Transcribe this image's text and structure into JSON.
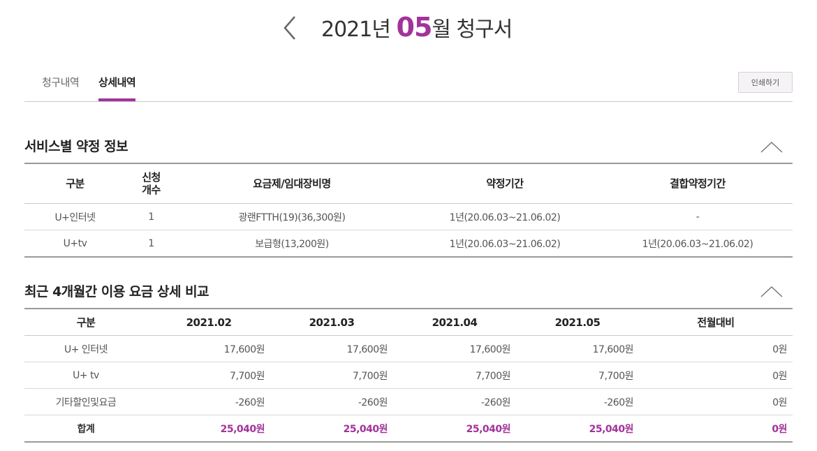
{
  "header": {
    "title_year": "2021년",
    "title_month": "05",
    "title_suffix": "월 청구서"
  },
  "tabs": [
    {
      "label": "청구내역",
      "active": false
    },
    {
      "label": "상세내역",
      "active": true
    }
  ],
  "print_label": "인쇄하기",
  "accent_color": "#a2339a",
  "section1": {
    "title": "서비스별 약정 정보",
    "headers": [
      "구분",
      "신청\n개수",
      "요금제/임대장비명",
      "약정기간",
      "결합약정기간"
    ],
    "rows": [
      [
        "U+인터넷",
        "1",
        "광랜FTTH(19)(36,300원)",
        "1년(20.06.03~21.06.02)",
        "-"
      ],
      [
        "U+tv",
        "1",
        "보급형(13,200원)",
        "1년(20.06.03~21.06.02)",
        "1년(20.06.03~21.06.02)"
      ]
    ]
  },
  "section2": {
    "title": "최근 4개월간 이용 요금 상세 비교",
    "headers": [
      "구분",
      "2021.02",
      "2021.03",
      "2021.04",
      "2021.05",
      "전월대비"
    ],
    "rows": [
      [
        "U+ 인터넷",
        "17,600원",
        "17,600원",
        "17,600원",
        "17,600원",
        "0원"
      ],
      [
        "U+ tv",
        "7,700원",
        "7,700원",
        "7,700원",
        "7,700원",
        "0원"
      ],
      [
        "기타할인및요금",
        "-260원",
        "-260원",
        "-260원",
        "-260원",
        "0원"
      ],
      [
        "합계",
        "25,040원",
        "25,040원",
        "25,040원",
        "25,040원",
        "0원"
      ]
    ]
  }
}
